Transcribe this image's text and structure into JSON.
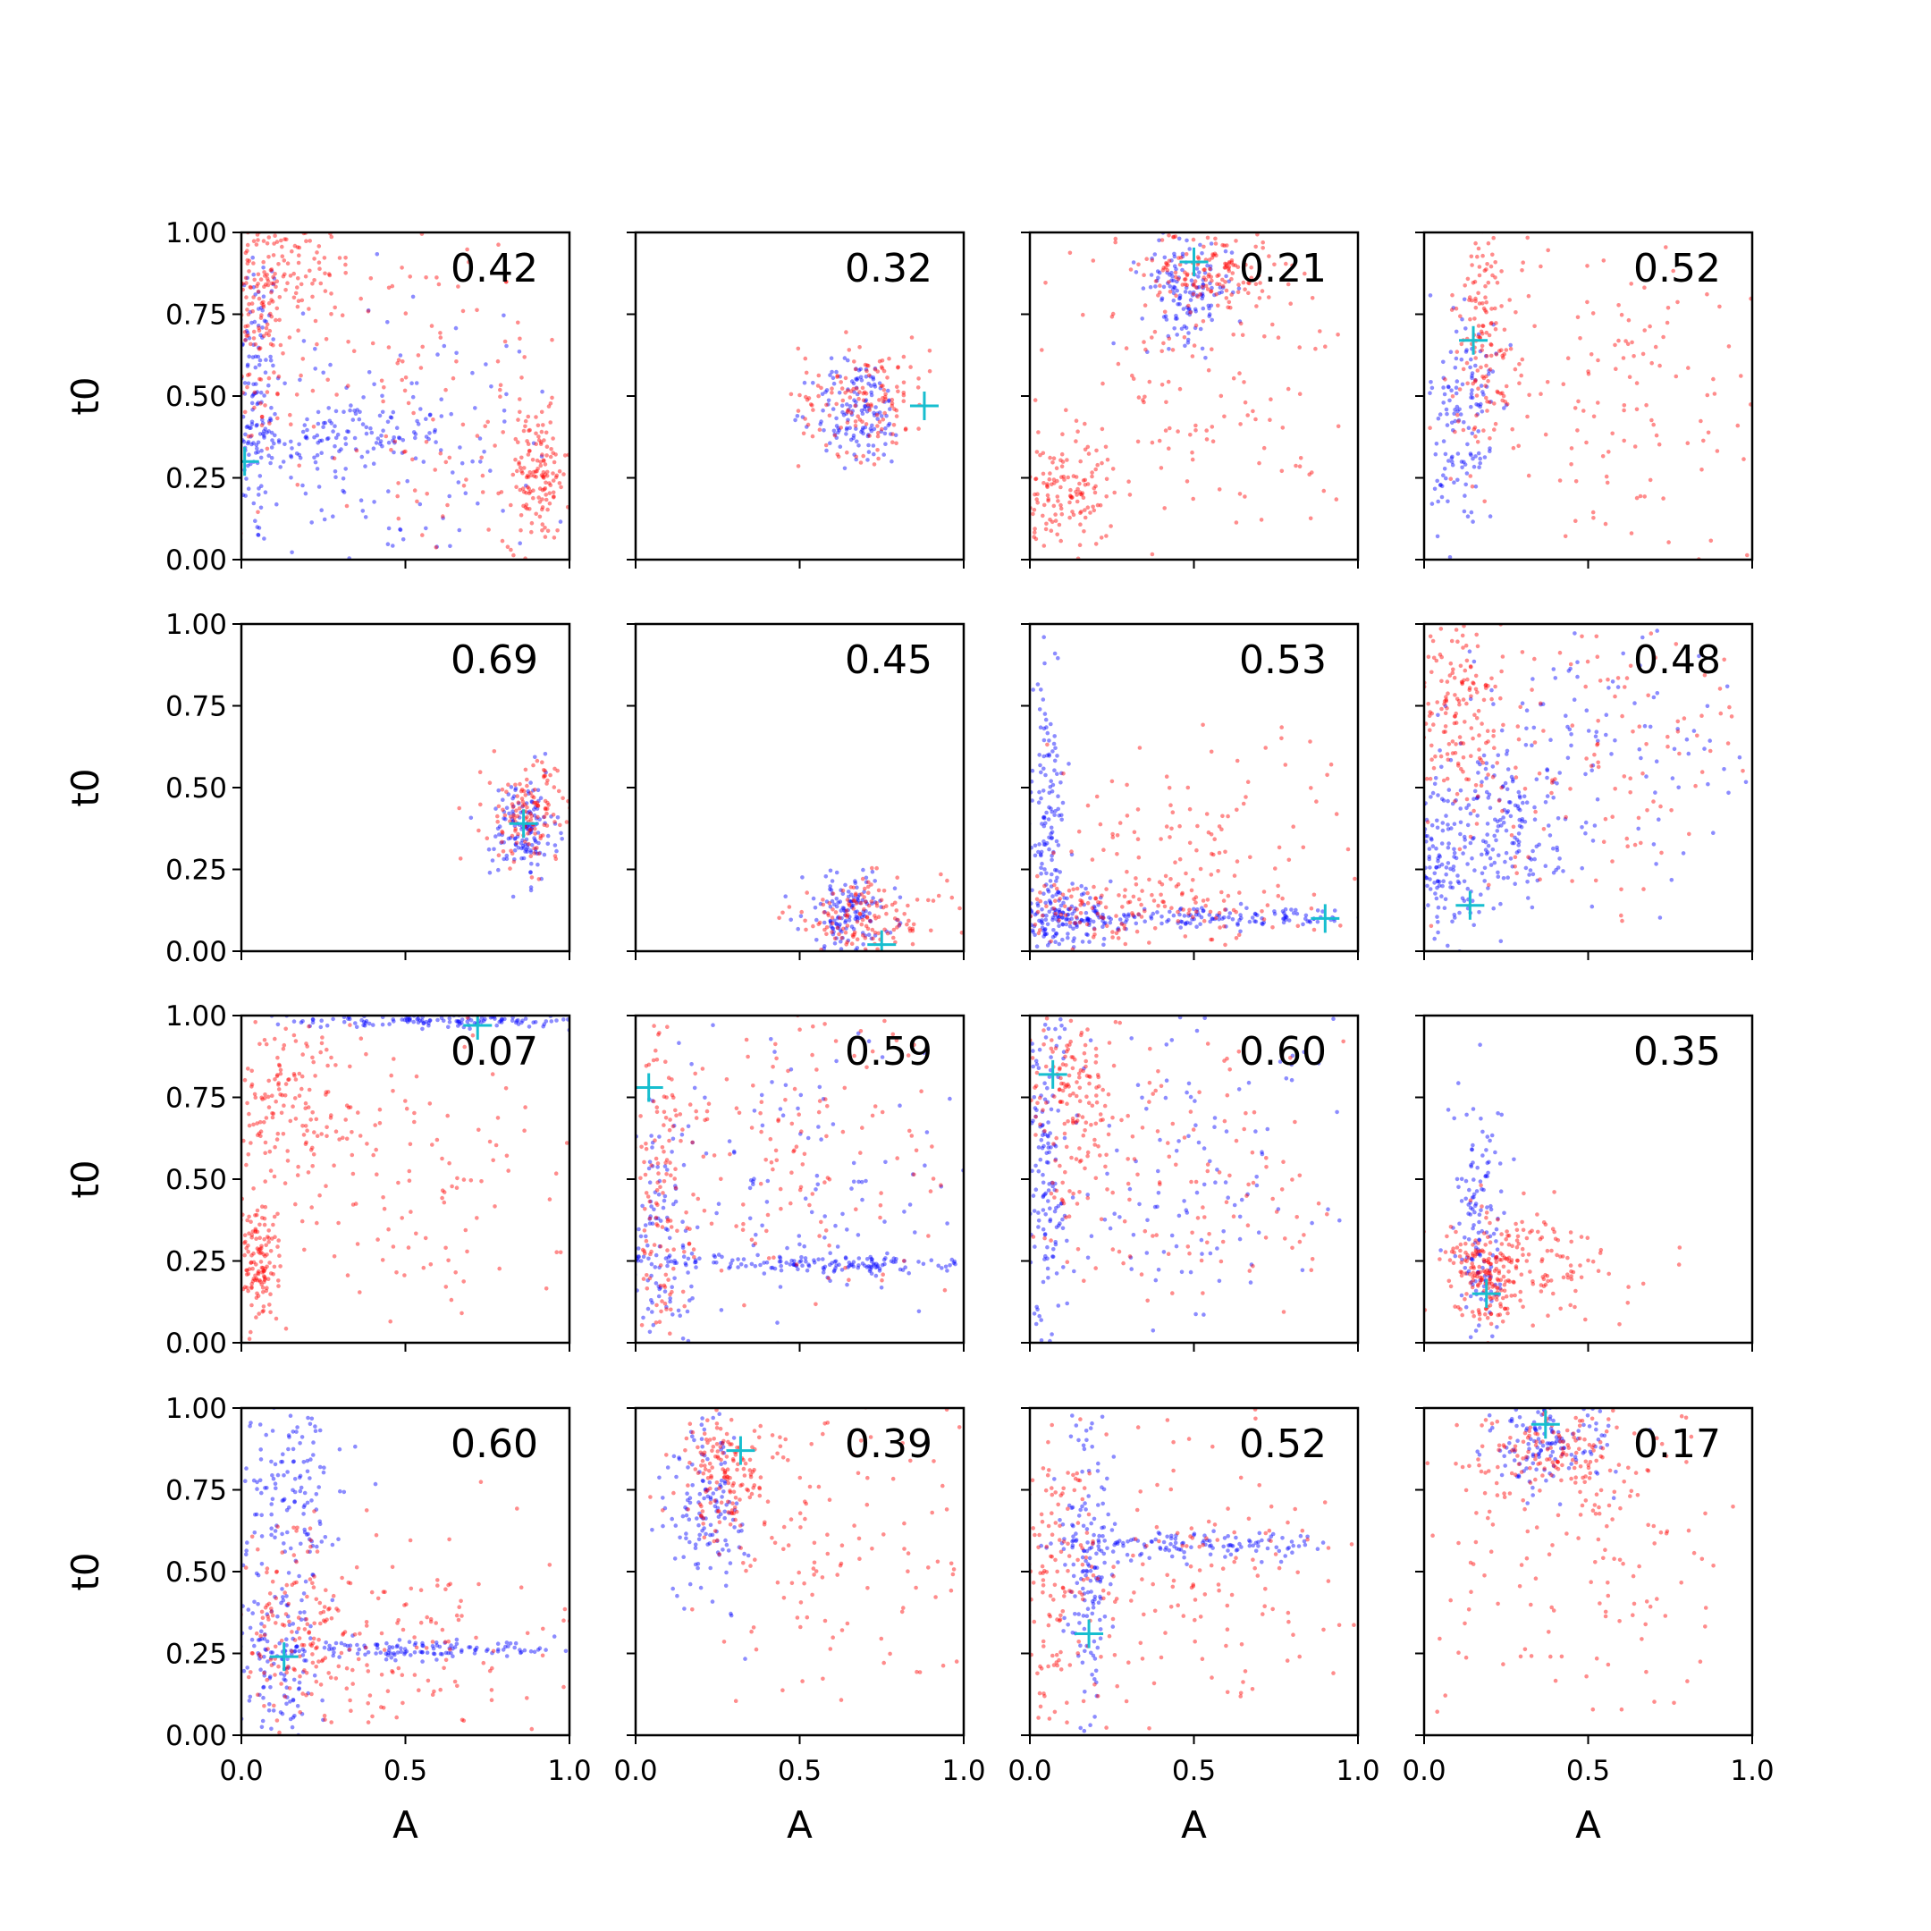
{
  "figure": {
    "xlabel": "A",
    "ylabel": "t0",
    "xlim": [
      0,
      1
    ],
    "ylim": [
      0,
      1
    ],
    "x_ticks": [
      "0.0",
      "0.5",
      "1.0"
    ],
    "y_ticks": [
      "0.00",
      "0.25",
      "0.50",
      "0.75",
      "1.00"
    ],
    "colors": {
      "series_a": "#ff0000",
      "series_b": "#0000ff",
      "truth_marker": "#17becf"
    }
  },
  "chart_data": [
    {
      "type": "scatter",
      "label": "0.42",
      "truth": [
        0.01,
        0.3
      ],
      "red": [
        [
          0.05,
          0.75,
          0.07,
          0.22
        ],
        [
          0.1,
          0.85,
          0.12,
          0.1
        ],
        [
          0.9,
          0.25,
          0.05,
          0.1
        ],
        [
          0.55,
          0.55,
          0.3,
          0.3
        ]
      ],
      "blue": [
        [
          0.04,
          0.5,
          0.04,
          0.25
        ],
        [
          0.25,
          0.38,
          0.2,
          0.05
        ],
        [
          0.45,
          0.3,
          0.3,
          0.25
        ]
      ]
    },
    {
      "type": "scatter",
      "label": "0.32",
      "truth": [
        0.88,
        0.47
      ],
      "red": [
        [
          0.7,
          0.5,
          0.1,
          0.09
        ]
      ],
      "blue": [
        [
          0.68,
          0.45,
          0.07,
          0.08
        ]
      ]
    },
    {
      "type": "scatter",
      "label": "0.21",
      "truth": [
        0.5,
        0.91
      ],
      "red": [
        [
          0.55,
          0.88,
          0.1,
          0.07
        ],
        [
          0.1,
          0.2,
          0.08,
          0.08
        ],
        [
          0.5,
          0.55,
          0.25,
          0.25
        ]
      ],
      "blue": [
        [
          0.48,
          0.83,
          0.07,
          0.08
        ]
      ]
    },
    {
      "type": "scatter",
      "label": "0.52",
      "truth": [
        0.15,
        0.67
      ],
      "red": [
        [
          0.18,
          0.7,
          0.05,
          0.18
        ],
        [
          0.6,
          0.5,
          0.25,
          0.25
        ]
      ],
      "blue": [
        [
          0.12,
          0.4,
          0.05,
          0.22
        ]
      ]
    },
    {
      "type": "scatter",
      "label": "0.69",
      "truth": [
        0.86,
        0.39
      ],
      "red": [
        [
          0.88,
          0.42,
          0.07,
          0.08
        ]
      ],
      "blue": [
        [
          0.86,
          0.37,
          0.05,
          0.08
        ]
      ]
    },
    {
      "type": "scatter",
      "label": "0.45",
      "truth": [
        0.75,
        0.02
      ],
      "red": [
        [
          0.7,
          0.1,
          0.12,
          0.06
        ]
      ],
      "blue": [
        [
          0.65,
          0.12,
          0.07,
          0.06
        ]
      ]
    },
    {
      "type": "scatter",
      "label": "0.53",
      "truth": [
        0.9,
        0.1
      ],
      "red": [
        [
          0.25,
          0.12,
          0.2,
          0.06
        ],
        [
          0.5,
          0.3,
          0.25,
          0.2
        ]
      ],
      "blue": [
        [
          0.1,
          0.1,
          0.08,
          0.04
        ],
        [
          0.55,
          0.1,
          0.25,
          0.015
        ],
        [
          0.05,
          0.4,
          0.03,
          0.2
        ]
      ]
    },
    {
      "type": "scatter",
      "label": "0.48",
      "truth": [
        0.14,
        0.14
      ],
      "red": [
        [
          0.1,
          0.75,
          0.07,
          0.14
        ],
        [
          0.5,
          0.55,
          0.28,
          0.25
        ]
      ],
      "blue": [
        [
          0.05,
          0.25,
          0.05,
          0.15
        ],
        [
          0.25,
          0.35,
          0.08,
          0.12
        ],
        [
          0.5,
          0.6,
          0.3,
          0.2
        ]
      ]
    },
    {
      "type": "scatter",
      "label": "0.07",
      "truth": [
        0.72,
        0.97
      ],
      "red": [
        [
          0.15,
          0.75,
          0.1,
          0.12
        ],
        [
          0.45,
          0.5,
          0.3,
          0.25
        ],
        [
          0.05,
          0.25,
          0.03,
          0.1
        ]
      ],
      "blue": [
        [
          0.6,
          0.985,
          0.25,
          0.01
        ]
      ]
    },
    {
      "type": "scatter",
      "label": "0.59",
      "truth": [
        0.04,
        0.78
      ],
      "red": [
        [
          0.07,
          0.5,
          0.05,
          0.25
        ],
        [
          0.5,
          0.6,
          0.25,
          0.25
        ]
      ],
      "blue": [
        [
          0.06,
          0.3,
          0.06,
          0.22
        ],
        [
          0.6,
          0.24,
          0.25,
          0.015
        ],
        [
          0.5,
          0.5,
          0.3,
          0.3
        ]
      ]
    },
    {
      "type": "scatter",
      "label": "0.60",
      "truth": [
        0.07,
        0.82
      ],
      "red": [
        [
          0.12,
          0.75,
          0.06,
          0.15
        ],
        [
          0.5,
          0.5,
          0.25,
          0.25
        ]
      ],
      "blue": [
        [
          0.05,
          0.5,
          0.03,
          0.3
        ],
        [
          0.5,
          0.5,
          0.3,
          0.3
        ]
      ]
    },
    {
      "type": "scatter",
      "label": "0.35",
      "truth": [
        0.19,
        0.15
      ],
      "red": [
        [
          0.3,
          0.25,
          0.15,
          0.08
        ],
        [
          0.2,
          0.2,
          0.05,
          0.07
        ]
      ],
      "blue": [
        [
          0.17,
          0.35,
          0.04,
          0.2
        ]
      ]
    },
    {
      "type": "scatter",
      "label": "0.60",
      "truth": [
        0.13,
        0.24
      ],
      "red": [
        [
          0.15,
          0.35,
          0.1,
          0.15
        ],
        [
          0.5,
          0.3,
          0.25,
          0.15
        ]
      ],
      "blue": [
        [
          0.12,
          0.2,
          0.06,
          0.15
        ],
        [
          0.55,
          0.26,
          0.25,
          0.015
        ],
        [
          0.15,
          0.75,
          0.08,
          0.15
        ]
      ]
    },
    {
      "type": "scatter",
      "label": "0.39",
      "truth": [
        0.32,
        0.87
      ],
      "red": [
        [
          0.28,
          0.82,
          0.07,
          0.1
        ],
        [
          0.6,
          0.6,
          0.25,
          0.25
        ]
      ],
      "blue": [
        [
          0.22,
          0.7,
          0.06,
          0.15
        ]
      ]
    },
    {
      "type": "scatter",
      "label": "0.52",
      "truth": [
        0.18,
        0.31
      ],
      "red": [
        [
          0.08,
          0.45,
          0.06,
          0.25
        ],
        [
          0.5,
          0.5,
          0.25,
          0.2
        ]
      ],
      "blue": [
        [
          0.5,
          0.58,
          0.25,
          0.02
        ],
        [
          0.18,
          0.5,
          0.04,
          0.25
        ]
      ]
    },
    {
      "type": "scatter",
      "label": "0.17",
      "truth": [
        0.37,
        0.95
      ],
      "red": [
        [
          0.4,
          0.85,
          0.15,
          0.08
        ],
        [
          0.5,
          0.5,
          0.25,
          0.25
        ]
      ],
      "blue": [
        [
          0.38,
          0.88,
          0.1,
          0.07
        ]
      ]
    }
  ]
}
